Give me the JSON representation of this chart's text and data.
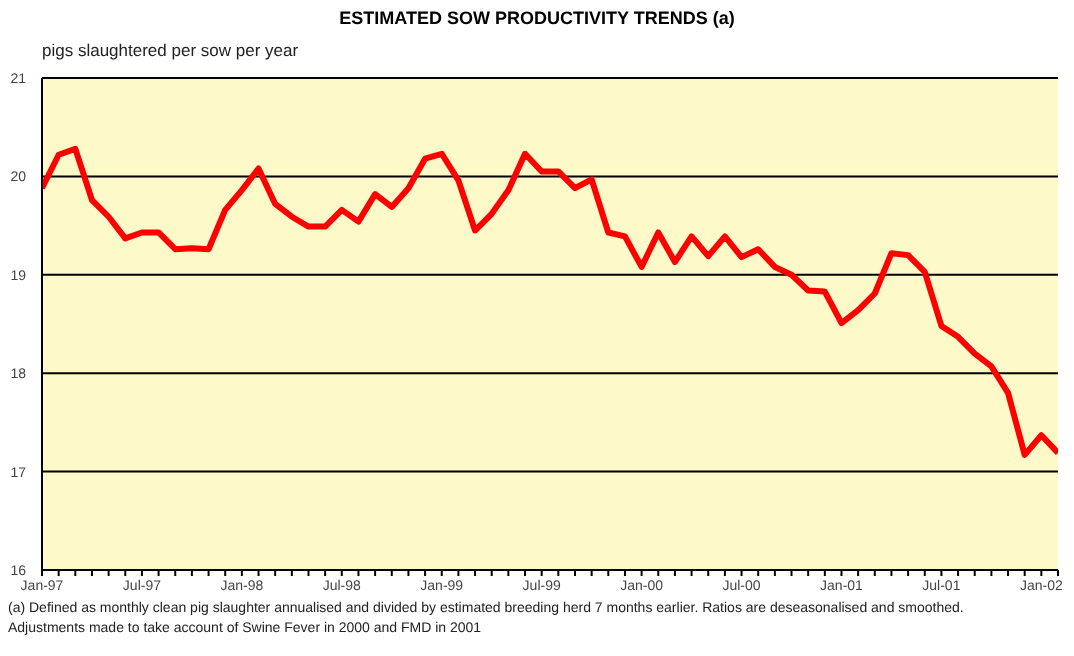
{
  "chart_data": {
    "type": "line",
    "title": "ESTIMATED SOW PRODUCTIVITY TRENDS (a)",
    "ylabel": "pigs slaughtered per sow per year",
    "x": [
      "1997-01",
      "1997-02",
      "1997-03",
      "1997-04",
      "1997-05",
      "1997-06",
      "1997-07",
      "1997-08",
      "1997-09",
      "1997-10",
      "1997-11",
      "1997-12",
      "1998-01",
      "1998-02",
      "1998-03",
      "1998-04",
      "1998-05",
      "1998-06",
      "1998-07",
      "1998-08",
      "1998-09",
      "1998-10",
      "1998-11",
      "1998-12",
      "1999-01",
      "1999-02",
      "1999-03",
      "1999-04",
      "1999-05",
      "1999-06",
      "1999-07",
      "1999-08",
      "1999-09",
      "1999-10",
      "1999-11",
      "1999-12",
      "2000-01",
      "2000-02",
      "2000-03",
      "2000-04",
      "2000-05",
      "2000-06",
      "2000-07",
      "2000-08",
      "2000-09",
      "2000-10",
      "2000-11",
      "2000-12",
      "2001-01",
      "2001-02",
      "2001-03",
      "2001-04",
      "2001-05",
      "2001-06",
      "2001-07",
      "2001-08",
      "2001-09",
      "2001-10",
      "2001-11",
      "2001-12",
      "2002-01",
      "2002-02"
    ],
    "series": [
      {
        "color": "#ff0000",
        "values": [
          19.88,
          20.22,
          20.28,
          19.76,
          19.59,
          19.37,
          19.43,
          19.43,
          19.26,
          19.27,
          19.26,
          19.66,
          19.86,
          20.08,
          19.72,
          19.59,
          19.49,
          19.49,
          19.66,
          19.54,
          19.82,
          19.69,
          19.88,
          20.18,
          20.23,
          19.96,
          19.45,
          19.62,
          19.86,
          20.23,
          20.05,
          20.05,
          19.88,
          19.97,
          19.43,
          19.39,
          19.08,
          19.43,
          19.13,
          19.39,
          19.19,
          19.39,
          19.18,
          19.26,
          19.08,
          19.0,
          18.84,
          18.83,
          18.51,
          18.64,
          18.81,
          19.22,
          19.2,
          19.03,
          18.48,
          18.37,
          18.2,
          18.07,
          17.8,
          17.17,
          17.37,
          17.19
        ]
      }
    ],
    "xlim": [
      "1997-01",
      "2002-02"
    ],
    "xticks": [
      {
        "value": "1997-01",
        "label": "Jan-97"
      },
      {
        "value": "1997-02",
        "label": null
      },
      {
        "value": "1997-03",
        "label": null
      },
      {
        "value": "1997-04",
        "label": null
      },
      {
        "value": "1997-05",
        "label": null
      },
      {
        "value": "1997-06",
        "label": null
      },
      {
        "value": "1997-07",
        "label": "Jul-97"
      },
      {
        "value": "1997-08",
        "label": null
      },
      {
        "value": "1997-09",
        "label": null
      },
      {
        "value": "1997-10",
        "label": null
      },
      {
        "value": "1997-11",
        "label": null
      },
      {
        "value": "1997-12",
        "label": null
      },
      {
        "value": "1998-01",
        "label": "Jan-98"
      },
      {
        "value": "1998-02",
        "label": null
      },
      {
        "value": "1998-03",
        "label": null
      },
      {
        "value": "1998-04",
        "label": null
      },
      {
        "value": "1998-05",
        "label": null
      },
      {
        "value": "1998-06",
        "label": null
      },
      {
        "value": "1998-07",
        "label": "Jul-98"
      },
      {
        "value": "1998-08",
        "label": null
      },
      {
        "value": "1998-09",
        "label": null
      },
      {
        "value": "1998-10",
        "label": null
      },
      {
        "value": "1998-11",
        "label": null
      },
      {
        "value": "1998-12",
        "label": null
      },
      {
        "value": "1999-01",
        "label": "Jan-99"
      },
      {
        "value": "1999-02",
        "label": null
      },
      {
        "value": "1999-03",
        "label": null
      },
      {
        "value": "1999-04",
        "label": null
      },
      {
        "value": "1999-05",
        "label": null
      },
      {
        "value": "1999-06",
        "label": null
      },
      {
        "value": "1999-07",
        "label": "Jul-99"
      },
      {
        "value": "1999-08",
        "label": null
      },
      {
        "value": "1999-09",
        "label": null
      },
      {
        "value": "1999-10",
        "label": null
      },
      {
        "value": "1999-11",
        "label": null
      },
      {
        "value": "1999-12",
        "label": null
      },
      {
        "value": "2000-01",
        "label": "Jan-00"
      },
      {
        "value": "2000-02",
        "label": null
      },
      {
        "value": "2000-03",
        "label": null
      },
      {
        "value": "2000-04",
        "label": null
      },
      {
        "value": "2000-05",
        "label": null
      },
      {
        "value": "2000-06",
        "label": null
      },
      {
        "value": "2000-07",
        "label": "Jul-00"
      },
      {
        "value": "2000-08",
        "label": null
      },
      {
        "value": "2000-09",
        "label": null
      },
      {
        "value": "2000-10",
        "label": null
      },
      {
        "value": "2000-11",
        "label": null
      },
      {
        "value": "2000-12",
        "label": null
      },
      {
        "value": "2001-01",
        "label": "Jan-01"
      },
      {
        "value": "2001-02",
        "label": null
      },
      {
        "value": "2001-03",
        "label": null
      },
      {
        "value": "2001-04",
        "label": null
      },
      {
        "value": "2001-05",
        "label": null
      },
      {
        "value": "2001-06",
        "label": null
      },
      {
        "value": "2001-07",
        "label": "Jul-01"
      },
      {
        "value": "2001-08",
        "label": null
      },
      {
        "value": "2001-09",
        "label": null
      },
      {
        "value": "2001-10",
        "label": null
      },
      {
        "value": "2001-11",
        "label": null
      },
      {
        "value": "2001-12",
        "label": null
      },
      {
        "value": "2002-01",
        "label": "Jan-02"
      },
      {
        "value": "2002-02",
        "label": null
      }
    ],
    "ylim": [
      16,
      21
    ],
    "yticks": [
      16,
      17,
      18,
      19,
      20,
      21
    ],
    "grid": "y",
    "legend": false,
    "marker": "none",
    "line_style": "solid",
    "annotations": [
      "(a)  Defined as monthly clean pig slaughter annualised and divided by estimated breeding herd 7 months earlier.  Ratios are deseasonalised and smoothed.",
      "Adjustments made to take account of Swine Fever in 2000 and FMD in 2001"
    ]
  }
}
